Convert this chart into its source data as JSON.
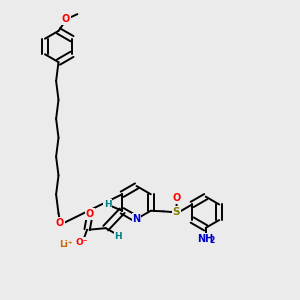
{
  "background_color": "#ebebeb",
  "bond_color": "#000000",
  "atom_colors": {
    "O": "#ff0000",
    "N": "#0000cc",
    "S": "#808000",
    "Li": "#cc6600",
    "H": "#008080",
    "C": "#000000"
  },
  "figsize": [
    3.0,
    3.0
  ],
  "dpi": 100
}
